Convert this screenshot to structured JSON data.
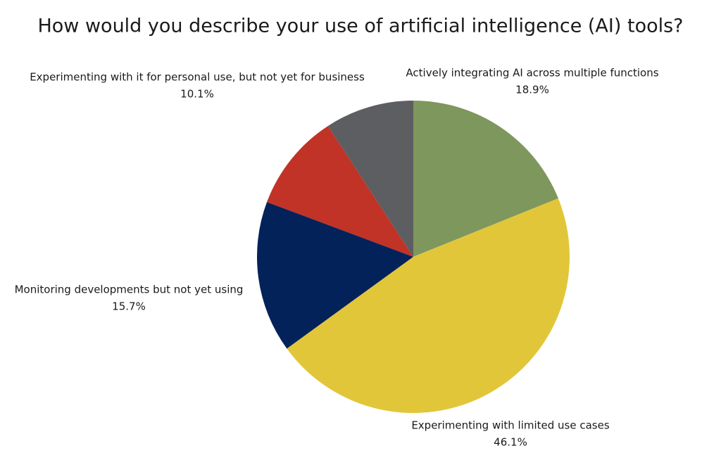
{
  "chart_data": {
    "type": "pie",
    "title": "How would you describe your use of artificial intelligence (AI) tools?",
    "categories": [
      "Actively integrating AI across multiple functions",
      "Experimenting with limited use cases",
      "Monitoring developments but not yet using",
      "Experimenting with it for personal use, but not yet for business",
      null
    ],
    "values": [
      18.9,
      46.1,
      15.7,
      10.1,
      9.2
    ],
    "value_labels": [
      "18.9%",
      "46.1%",
      "15.7%",
      "10.1%",
      null
    ],
    "colors": [
      "#7e975d",
      "#e2c63a",
      "#03225a",
      "#c03326",
      "#5d5e61"
    ]
  }
}
